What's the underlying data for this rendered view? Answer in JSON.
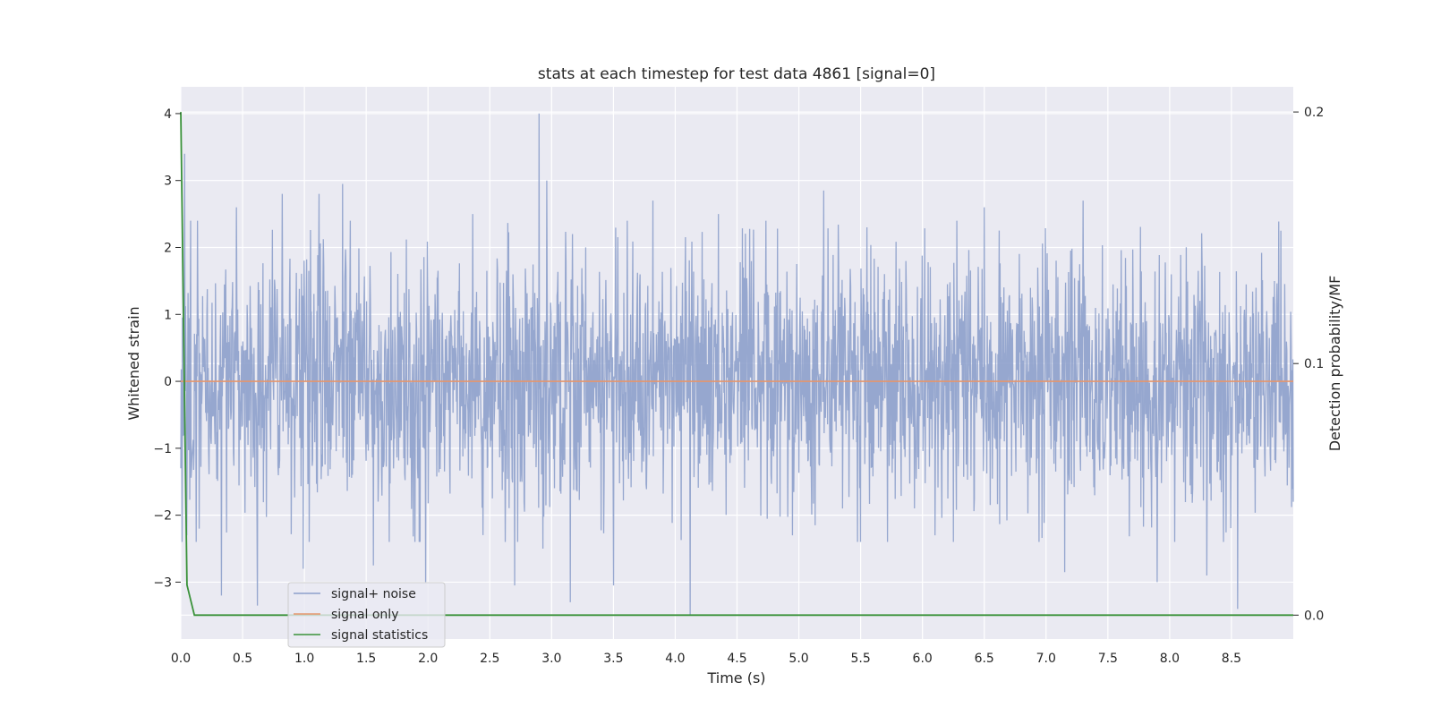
{
  "chart_data": {
    "type": "line",
    "title": "stats at each timestep for test data 4861 [signal=0]",
    "xlabel": "Time (s)",
    "ylabel_left": "Whitened strain",
    "ylabel_right": "Detection probability/MF",
    "xlim": [
      0,
      9.0
    ],
    "ylim_left": [
      -3.85,
      4.4
    ],
    "ylim_right": [
      -0.0095,
      0.21
    ],
    "x_ticks": [
      "0.0",
      "0.5",
      "1.0",
      "1.5",
      "2.0",
      "2.5",
      "3.0",
      "3.5",
      "4.0",
      "4.5",
      "5.0",
      "5.5",
      "6.0",
      "6.5",
      "7.0",
      "7.5",
      "8.0",
      "8.5"
    ],
    "y_ticks_left": [
      "4",
      "3",
      "2",
      "1",
      "0",
      "−1",
      "−2",
      "−3"
    ],
    "y_ticks_right": [
      "0.2",
      "0.1",
      "0.0"
    ],
    "grid": true,
    "legend_position": "lower-left",
    "series": [
      {
        "name": "signal+ noise",
        "color": "#8da0cb",
        "axis": "left",
        "description_only": false,
        "x": [
          0.0,
          0.03,
          0.05,
          0.08,
          0.15,
          0.33,
          0.45,
          0.62,
          0.82,
          0.99,
          1.12,
          1.31,
          1.56,
          1.98,
          2.36,
          2.7,
          2.9,
          2.93,
          2.96,
          3.15,
          3.17,
          3.5,
          3.82,
          4.12,
          4.35,
          4.95,
          5.2,
          5.55,
          6.1,
          6.5,
          7.15,
          7.3,
          7.9,
          8.3,
          8.55,
          8.9,
          9.0
        ],
        "values": [
          -1.3,
          3.4,
          -2.3,
          2.4,
          -2.2,
          -3.2,
          2.6,
          -3.35,
          2.8,
          -2.8,
          2.8,
          2.95,
          -2.75,
          -3.0,
          2.5,
          -3.05,
          4.0,
          -2.5,
          3.0,
          -3.3,
          2.2,
          -3.05,
          2.7,
          -3.5,
          2.5,
          -2.3,
          2.85,
          2.3,
          -2.3,
          2.6,
          -2.85,
          2.7,
          -3.0,
          -2.9,
          -3.4,
          2.25,
          -1.8
        ]
      },
      {
        "name": "signal only",
        "color": "#e5966d",
        "axis": "left",
        "x": [
          0.0,
          9.0
        ],
        "values": [
          0.0,
          0.0
        ]
      },
      {
        "name": "signal statistics",
        "color": "#3a923a",
        "axis": "right",
        "x": [
          0.0,
          0.05,
          0.11,
          0.2,
          9.0
        ],
        "values": [
          0.2,
          0.012,
          0.0,
          0.0,
          0.0
        ]
      }
    ]
  }
}
